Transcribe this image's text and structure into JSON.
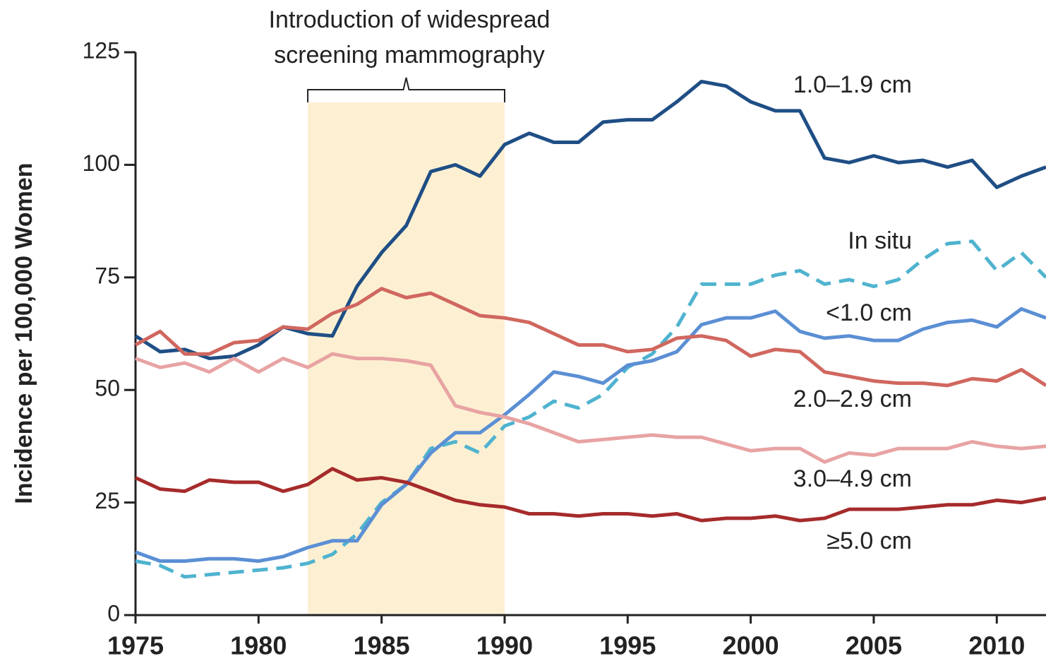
{
  "chart_data": {
    "type": "line",
    "y_label": "Incidence per 100,000 Women",
    "annotation": [
      "Introduction of widespread",
      "screening mammography"
    ],
    "shade": [
      1982,
      1990
    ],
    "shade_color": "#fdf0d2",
    "x": [
      1975,
      1976,
      1977,
      1978,
      1979,
      1980,
      1981,
      1982,
      1983,
      1984,
      1985,
      1986,
      1987,
      1988,
      1989,
      1990,
      1991,
      1992,
      1993,
      1994,
      1995,
      1996,
      1997,
      1998,
      1999,
      2000,
      2001,
      2002,
      2003,
      2004,
      2005,
      2006,
      2007,
      2008,
      2009,
      2010,
      2011,
      2012
    ],
    "xlim": [
      1975,
      2012
    ],
    "xticks": [
      1975,
      1980,
      1985,
      1990,
      1995,
      2000,
      2005,
      2010
    ],
    "ylim": [
      0,
      125
    ],
    "yticks": [
      0,
      25,
      50,
      75,
      100,
      125
    ],
    "series": [
      {
        "name": "1.0–1.9 cm",
        "color": "#1f4e85",
        "style": "solid",
        "values": [
          62,
          58.5,
          59,
          57,
          57.5,
          60,
          64,
          62.5,
          62,
          73,
          80.5,
          86.5,
          98.5,
          100,
          97.5,
          104.5,
          107,
          105,
          105,
          109.5,
          110,
          110,
          114,
          118.5,
          117.5,
          114,
          112,
          112,
          101.5,
          100.5,
          102,
          100.5,
          101,
          99.5,
          101,
          95,
          97.5,
          99.5
        ]
      },
      {
        "name": "In situ",
        "color": "#4fb3cf",
        "style": "dashed",
        "values": [
          12,
          11,
          8.5,
          9,
          9.5,
          10,
          10.5,
          11.5,
          13.5,
          18,
          25,
          29,
          37,
          38.5,
          36,
          42,
          44,
          47.5,
          46,
          49,
          55,
          58,
          64,
          73.5,
          73.5,
          73.5,
          75.5,
          76.5,
          73.5,
          74.5,
          73,
          74.5,
          79,
          82.5,
          83,
          76.5,
          80.5,
          75
        ]
      },
      {
        "name": "<1.0 cm",
        "color": "#5b8fd4",
        "style": "solid",
        "values": [
          14,
          12,
          12,
          12.5,
          12.5,
          12,
          13,
          15,
          16.5,
          16.5,
          24.5,
          29,
          36,
          40.5,
          40.5,
          44.5,
          49,
          54,
          53,
          51.5,
          55.5,
          56.5,
          58.5,
          64.5,
          66,
          66,
          67.5,
          63,
          61.5,
          62,
          61,
          61,
          63.5,
          65,
          65.5,
          64,
          68,
          66
        ]
      },
      {
        "name": "2.0–2.9 cm",
        "color": "#d0675f",
        "style": "solid",
        "values": [
          60,
          63,
          58,
          58,
          60.5,
          61,
          64,
          63.5,
          67,
          69,
          72.5,
          70.5,
          71.5,
          69,
          66.5,
          66,
          65,
          62.5,
          60,
          60,
          58.5,
          59,
          61.5,
          62,
          61,
          57.5,
          59,
          58.5,
          54,
          53,
          52,
          51.5,
          51.5,
          51,
          52.5,
          52,
          54.5,
          51
        ]
      },
      {
        "name": "3.0–4.9 cm",
        "color": "#e8a3a3",
        "style": "solid",
        "values": [
          57,
          55,
          56,
          54,
          57,
          54,
          57,
          55,
          58,
          57,
          57,
          56.5,
          55.5,
          46.5,
          45,
          44,
          42.5,
          40.5,
          38.5,
          39,
          39.5,
          40,
          39.5,
          39.5,
          38,
          36.5,
          37,
          37,
          34,
          36,
          35.5,
          37,
          37,
          37,
          38.5,
          37.5,
          37,
          37.5
        ]
      },
      {
        "name": "≥5.0 cm",
        "color": "#a62b2b",
        "style": "solid",
        "values": [
          30.5,
          28,
          27.5,
          30,
          29.5,
          29.5,
          27.5,
          29,
          32.5,
          30,
          30.5,
          29.5,
          27.5,
          25.5,
          24.5,
          24,
          22.5,
          22.5,
          22,
          22.5,
          22.5,
          22,
          22.5,
          21,
          21.5,
          21.5,
          22,
          21,
          21.5,
          23.5,
          23.5,
          23.5,
          24,
          24.5,
          24.5,
          25.5,
          25,
          26
        ]
      }
    ]
  }
}
